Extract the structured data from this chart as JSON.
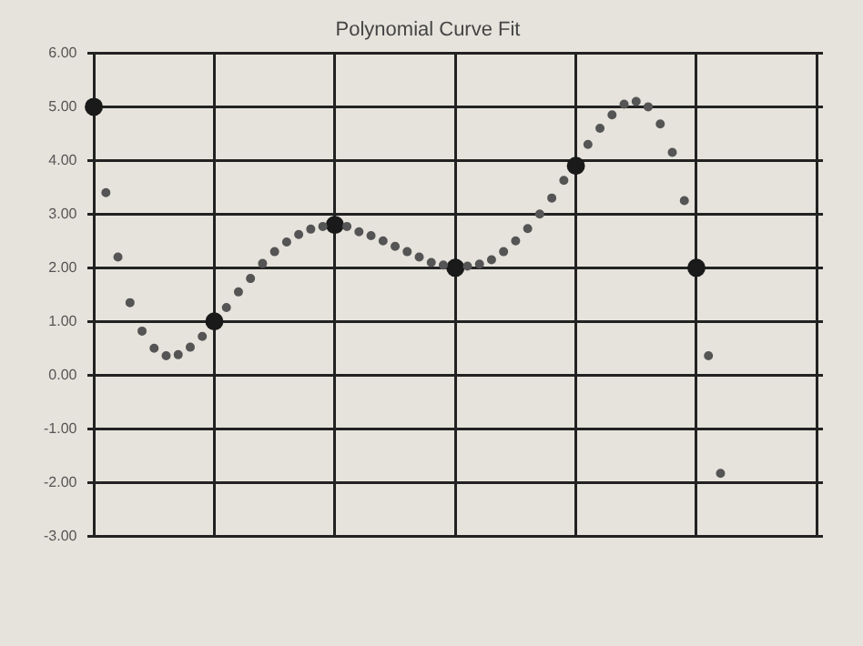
{
  "chart_data": {
    "type": "scatter",
    "title": "Polynomial Curve Fit",
    "categories": [
      null,
      null,
      null,
      null,
      null,
      null,
      null,
      null,
      null,
      null,
      null,
      null,
      null,
      null,
      null,
      null,
      null,
      null,
      null,
      null,
      null,
      null,
      null,
      null,
      null,
      null,
      null,
      null,
      null,
      null,
      null,
      null,
      null,
      null,
      null,
      null,
      null,
      null,
      null,
      null,
      null,
      null,
      null,
      null,
      null,
      null,
      null,
      null,
      null,
      null,
      null,
      null,
      null,
      null,
      null,
      null,
      null,
      null,
      null,
      null,
      null
    ],
    "ylim": [
      -3,
      6
    ],
    "yticks": [
      {
        "value": -3,
        "label": "-3.00"
      },
      {
        "value": -2,
        "label": "-2.00"
      },
      {
        "value": -1,
        "label": "-1.00"
      },
      {
        "value": 0,
        "label": "0.00"
      },
      {
        "value": 1,
        "label": "1.00"
      },
      {
        "value": 2,
        "label": "2.00"
      },
      {
        "value": 3,
        "label": "3.00"
      },
      {
        "value": 4,
        "label": "4.00"
      },
      {
        "value": 5,
        "label": "5.00"
      },
      {
        "value": 6,
        "label": "6.00"
      }
    ],
    "grid": true,
    "marker": "circle",
    "series": [
      {
        "color": "#555555",
        "values": [
          null,
          3.4,
          2.2,
          1.35,
          0.82,
          0.5,
          0.36,
          0.38,
          0.52,
          0.72,
          null,
          1.26,
          1.55,
          1.8,
          2.08,
          2.3,
          2.48,
          2.62,
          2.72,
          2.77,
          null,
          2.77,
          2.67,
          2.6,
          2.5,
          2.4,
          2.3,
          2.2,
          2.1,
          2.05,
          null,
          2.03,
          2.07,
          2.15,
          2.3,
          2.5,
          2.73,
          3.0,
          3.3,
          3.63,
          null,
          4.3,
          4.6,
          4.85,
          5.05,
          5.1,
          5.0,
          4.68,
          4.15,
          3.25,
          null,
          0.36,
          -1.83,
          null,
          null,
          null,
          null,
          null,
          null,
          null,
          null
        ]
      },
      {
        "color": "#1a1a1a",
        "values": [
          5,
          null,
          null,
          null,
          null,
          null,
          null,
          null,
          null,
          null,
          1,
          null,
          null,
          null,
          null,
          null,
          null,
          null,
          null,
          null,
          2.8,
          null,
          null,
          null,
          null,
          null,
          null,
          null,
          null,
          null,
          2,
          null,
          null,
          null,
          null,
          null,
          null,
          null,
          null,
          null,
          3.9,
          null,
          null,
          null,
          null,
          null,
          null,
          null,
          null,
          null,
          2,
          null,
          null,
          null,
          null,
          null,
          null,
          null,
          null,
          null,
          null
        ]
      }
    ]
  }
}
